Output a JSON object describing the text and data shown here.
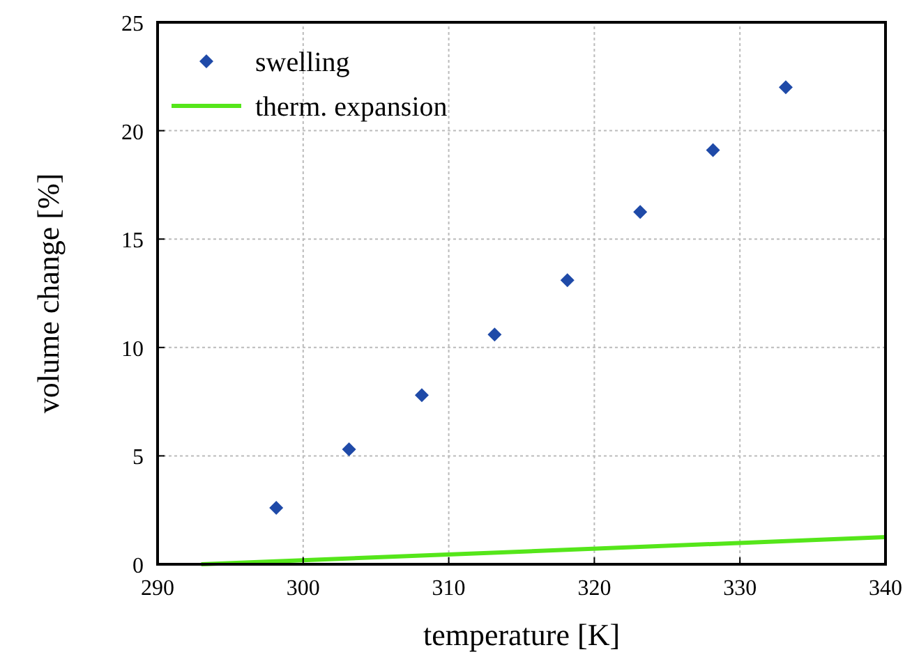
{
  "chart_data": {
    "type": "scatter",
    "xlabel": "temperature [K]",
    "ylabel": "volume change [%]",
    "xlim": [
      290,
      340
    ],
    "ylim": [
      0,
      25
    ],
    "xticks": [
      290,
      300,
      310,
      320,
      330,
      340
    ],
    "yticks": [
      0,
      5,
      10,
      15,
      20,
      25
    ],
    "grid": true,
    "legend": "top left",
    "series": [
      {
        "name": "swelling",
        "type": "scatter",
        "marker": "diamond",
        "color": "#1f4aa8",
        "x": [
          298.15,
          303.15,
          308.15,
          313.15,
          318.15,
          323.15,
          328.15,
          333.15
        ],
        "values": [
          2.6,
          5.3,
          7.8,
          10.6,
          13.1,
          16.25,
          19.1,
          22.0
        ]
      },
      {
        "name": "therm. expansion",
        "type": "line",
        "color": "#55e61a",
        "x": [
          293,
          340
        ],
        "values": [
          0,
          1.25
        ]
      }
    ]
  }
}
